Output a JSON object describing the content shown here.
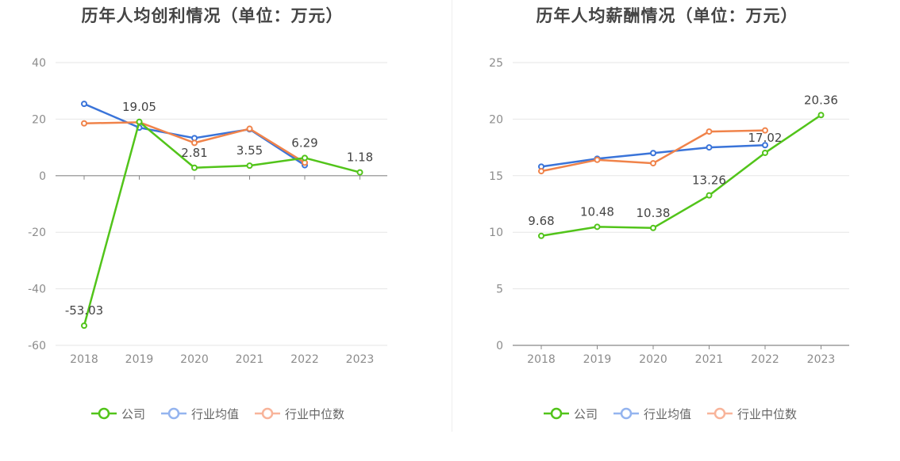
{
  "legend": {
    "items": [
      {
        "label": "公司",
        "color": "#52c41a"
      },
      {
        "label": "行业均值",
        "color": "#3a74d9"
      },
      {
        "label": "行业中位数",
        "color": "#f0834a"
      }
    ],
    "inactive_colors": [
      "#52c41a",
      "#94b4ef",
      "#f8b49a"
    ]
  },
  "chart_data": [
    {
      "type": "line",
      "title": "历年人均创利情况（单位：万元）",
      "categories": [
        "2018",
        "2019",
        "2020",
        "2021",
        "2022",
        "2023"
      ],
      "ylim": [
        -60,
        40
      ],
      "yticks": [
        40,
        20,
        0,
        -20,
        -40,
        -60
      ],
      "grid": true,
      "legend_position": "bottom",
      "series": [
        {
          "name": "公司",
          "color": "#52c41a",
          "values": [
            -53.03,
            19.05,
            2.81,
            3.55,
            6.29,
            1.18
          ],
          "labels": [
            "-53.03",
            "19.05",
            "2.81",
            "3.55",
            "6.29",
            "1.18"
          ]
        },
        {
          "name": "行业均值",
          "color": "#3a74d9",
          "values": [
            25.4,
            17.0,
            13.3,
            16.4,
            3.7,
            null
          ]
        },
        {
          "name": "行业中位数",
          "color": "#f0834a",
          "values": [
            18.5,
            18.9,
            11.6,
            16.6,
            4.6,
            null
          ]
        }
      ]
    },
    {
      "type": "line",
      "title": "历年人均薪酬情况（单位：万元）",
      "categories": [
        "2018",
        "2019",
        "2020",
        "2021",
        "2022",
        "2023"
      ],
      "ylim": [
        0,
        25
      ],
      "yticks": [
        25,
        20,
        15,
        10,
        5,
        0
      ],
      "grid": true,
      "legend_position": "bottom",
      "series": [
        {
          "name": "公司",
          "color": "#52c41a",
          "values": [
            9.68,
            10.48,
            10.38,
            13.26,
            17.02,
            20.36
          ],
          "labels": [
            "9.68",
            "10.48",
            "10.38",
            "13.26",
            "17.02",
            "20.36"
          ]
        },
        {
          "name": "行业均值",
          "color": "#3a74d9",
          "values": [
            15.8,
            16.5,
            17.0,
            17.5,
            17.7,
            null
          ]
        },
        {
          "name": "行业中位数",
          "color": "#f0834a",
          "values": [
            15.4,
            16.4,
            16.1,
            18.9,
            19.0,
            null
          ]
        }
      ]
    }
  ]
}
